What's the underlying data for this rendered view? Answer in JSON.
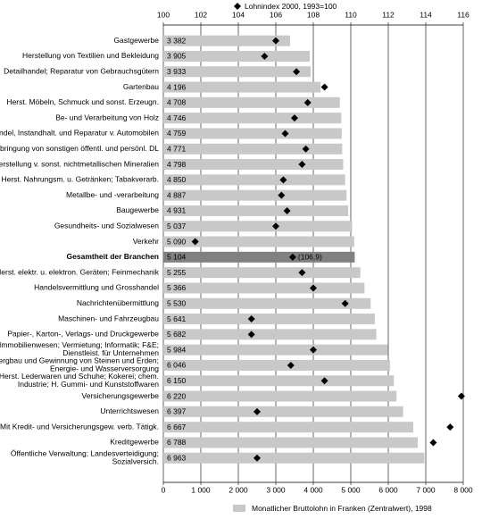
{
  "chart_data": {
    "type": "bar",
    "orientation": "horizontal",
    "categories": [
      "Gastgewerbe",
      "Herstellung von Textilien und Bekleidung",
      "Detailhandel; Reparatur von Gebrauchsgütern",
      "Gartenbau",
      "Herst. Möbeln, Schmuck und sonst. Erzeugn.",
      "Be- und Verarbeitung von Holz",
      "Handel, Instandhalt. und Reparatur v. Automobilen",
      "Erbringung von sonstigen öffentl. und persönl. DL",
      "Herstellung v. sonst. nichtmetallischen Mineralien",
      "Herst. Nahrungsm. u. Getränken; Tabakverarb.",
      "Metallbe- und -verarbeitung",
      "Baugewerbe",
      "Gesundheits- und Sozialwesen",
      "Verkehr",
      "Gesamtheit der Branchen",
      "Herst. elektr. u. elektron. Geräten; Feinmechanik",
      "Handelsvermittlung und Grosshandel",
      "Nachrichtenübermittlung",
      "Maschinen- und Fahrzeugbau",
      "Papier-, Karton-, Verlags- und Druckgewerbe",
      "Immobilienwesen; Vermietung; Informatik; F&E;\nDienstleist. für Unternehmen",
      "Bergbau und Gewinnung von Steinen und Erden;\nEnergie- und Wasserversorgung",
      "Herst. Lederwaren und Schuhe; Kokerei; chem.\nIndustrie; H. Gummi- und Kunststoffwaren",
      "Versicherungsgewerbe",
      "Unterrichtswesen",
      "Mit Kredit- und Versicherungsgew. verb. Tätigk.",
      "Kreditgewerbe",
      "Öffentliche Verwaltung; Landesverteidigung;\nSozialversich."
    ],
    "series": [
      {
        "name": "Monatlicher Bruttolohn  in Franken (Zentralwert), 1998",
        "color": "#c8c8c8",
        "colors": [
          "#c8c8c8",
          "#c8c8c8",
          "#c8c8c8",
          "#c8c8c8",
          "#c8c8c8",
          "#c8c8c8",
          "#c8c8c8",
          "#c8c8c8",
          "#c8c8c8",
          "#c8c8c8",
          "#c8c8c8",
          "#c8c8c8",
          "#c8c8c8",
          "#c8c8c8",
          "#808080",
          "#c8c8c8",
          "#c8c8c8",
          "#c8c8c8",
          "#c8c8c8",
          "#c8c8c8",
          "#c8c8c8",
          "#c8c8c8",
          "#c8c8c8",
          "#c8c8c8",
          "#c8c8c8",
          "#c8c8c8",
          "#c8c8c8",
          "#c8c8c8"
        ],
        "values": [
          3382,
          3905,
          3933,
          4196,
          4708,
          4746,
          4759,
          4771,
          4798,
          4850,
          4887,
          4931,
          5037,
          5090,
          5104,
          5255,
          5366,
          5530,
          5641,
          5682,
          5984,
          6046,
          6150,
          6220,
          6397,
          6667,
          6788,
          6963
        ],
        "value_labels": [
          "3 382",
          "3 905",
          "3 933",
          "4 196",
          "4 708",
          "4 746",
          "4 759",
          "4 771",
          "4 798",
          "4 850",
          "4 887",
          "4 931",
          "5 037",
          "5 090",
          "5 104",
          "5 255",
          "5 366",
          "5 530",
          "5 641",
          "5 682",
          "5 984",
          "6 046",
          "6 150",
          "6 220",
          "6 397",
          "6 667",
          "6 788",
          "6 963"
        ]
      },
      {
        "name": "Lohnindex 2000, 1993=100",
        "color": "#000000",
        "axis": "x2",
        "marker": "diamond",
        "values": [
          106.0,
          105.4,
          107.1,
          108.6,
          107.7,
          107.0,
          106.5,
          107.6,
          107.4,
          106.4,
          106.3,
          106.6,
          106.0,
          101.7,
          106.9,
          107.4,
          108.0,
          109.7,
          104.7,
          104.7,
          108.0,
          106.8,
          108.6,
          115.9,
          105.0,
          115.3,
          114.4,
          105.0
        ],
        "value_labels": [
          null,
          null,
          null,
          null,
          null,
          null,
          null,
          null,
          null,
          null,
          null,
          null,
          null,
          null,
          "(106,9)",
          null,
          null,
          null,
          null,
          null,
          null,
          null,
          null,
          null,
          null,
          null,
          null,
          null
        ]
      }
    ],
    "xlim": [
      0,
      8000
    ],
    "xticks": [
      0,
      {
        "value": 1000,
        "label": "1 000"
      },
      {
        "value": 2000,
        "label": "2 000"
      },
      {
        "value": 3000,
        "label": "3 000"
      },
      {
        "value": 4000,
        "label": "4 000"
      },
      {
        "value": 5000,
        "label": "5 000"
      },
      {
        "value": 6000,
        "label": "6 000"
      },
      {
        "value": 7000,
        "label": "7 000"
      },
      {
        "value": 8000,
        "label": "8 000"
      }
    ],
    "x2lim": [
      100,
      116
    ],
    "x2ticks": [
      100,
      102,
      104,
      106,
      108,
      110,
      112,
      114,
      116
    ],
    "grid": true
  }
}
